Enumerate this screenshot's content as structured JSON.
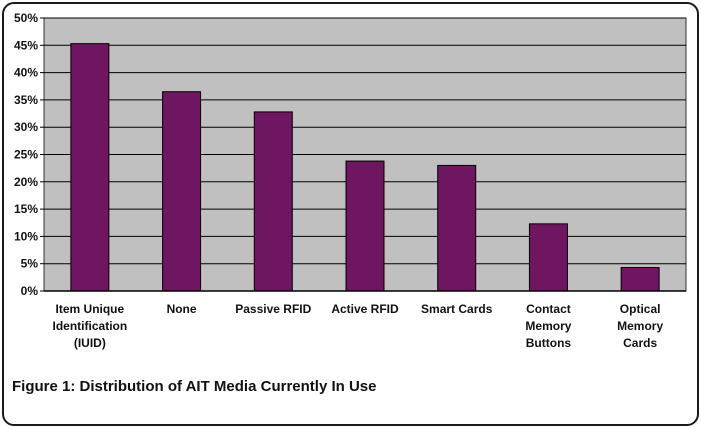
{
  "chart_data": {
    "type": "bar",
    "caption": "Figure 1: Distribution of AIT Media Currently In Use",
    "categories": [
      [
        "Item Unique",
        "Identification",
        "(IUID)"
      ],
      [
        "None"
      ],
      [
        "Passive RFID"
      ],
      [
        "Active RFID"
      ],
      [
        "Smart Cards"
      ],
      [
        "Contact",
        "Memory",
        "Buttons"
      ],
      [
        "Optical",
        "Memory",
        "Cards"
      ]
    ],
    "values": [
      45.3,
      36.5,
      32.8,
      23.8,
      23.0,
      12.3,
      4.3
    ],
    "ylim": [
      0,
      50
    ],
    "yticks": [
      "0%",
      "5%",
      "10%",
      "15%",
      "20%",
      "25%",
      "30%",
      "35%",
      "40%",
      "45%",
      "50%"
    ],
    "grid": true,
    "legend": "none",
    "colors": {
      "bar": "#6e1660",
      "plot_bg": "#c0c0c0",
      "grid": "#000000"
    }
  }
}
